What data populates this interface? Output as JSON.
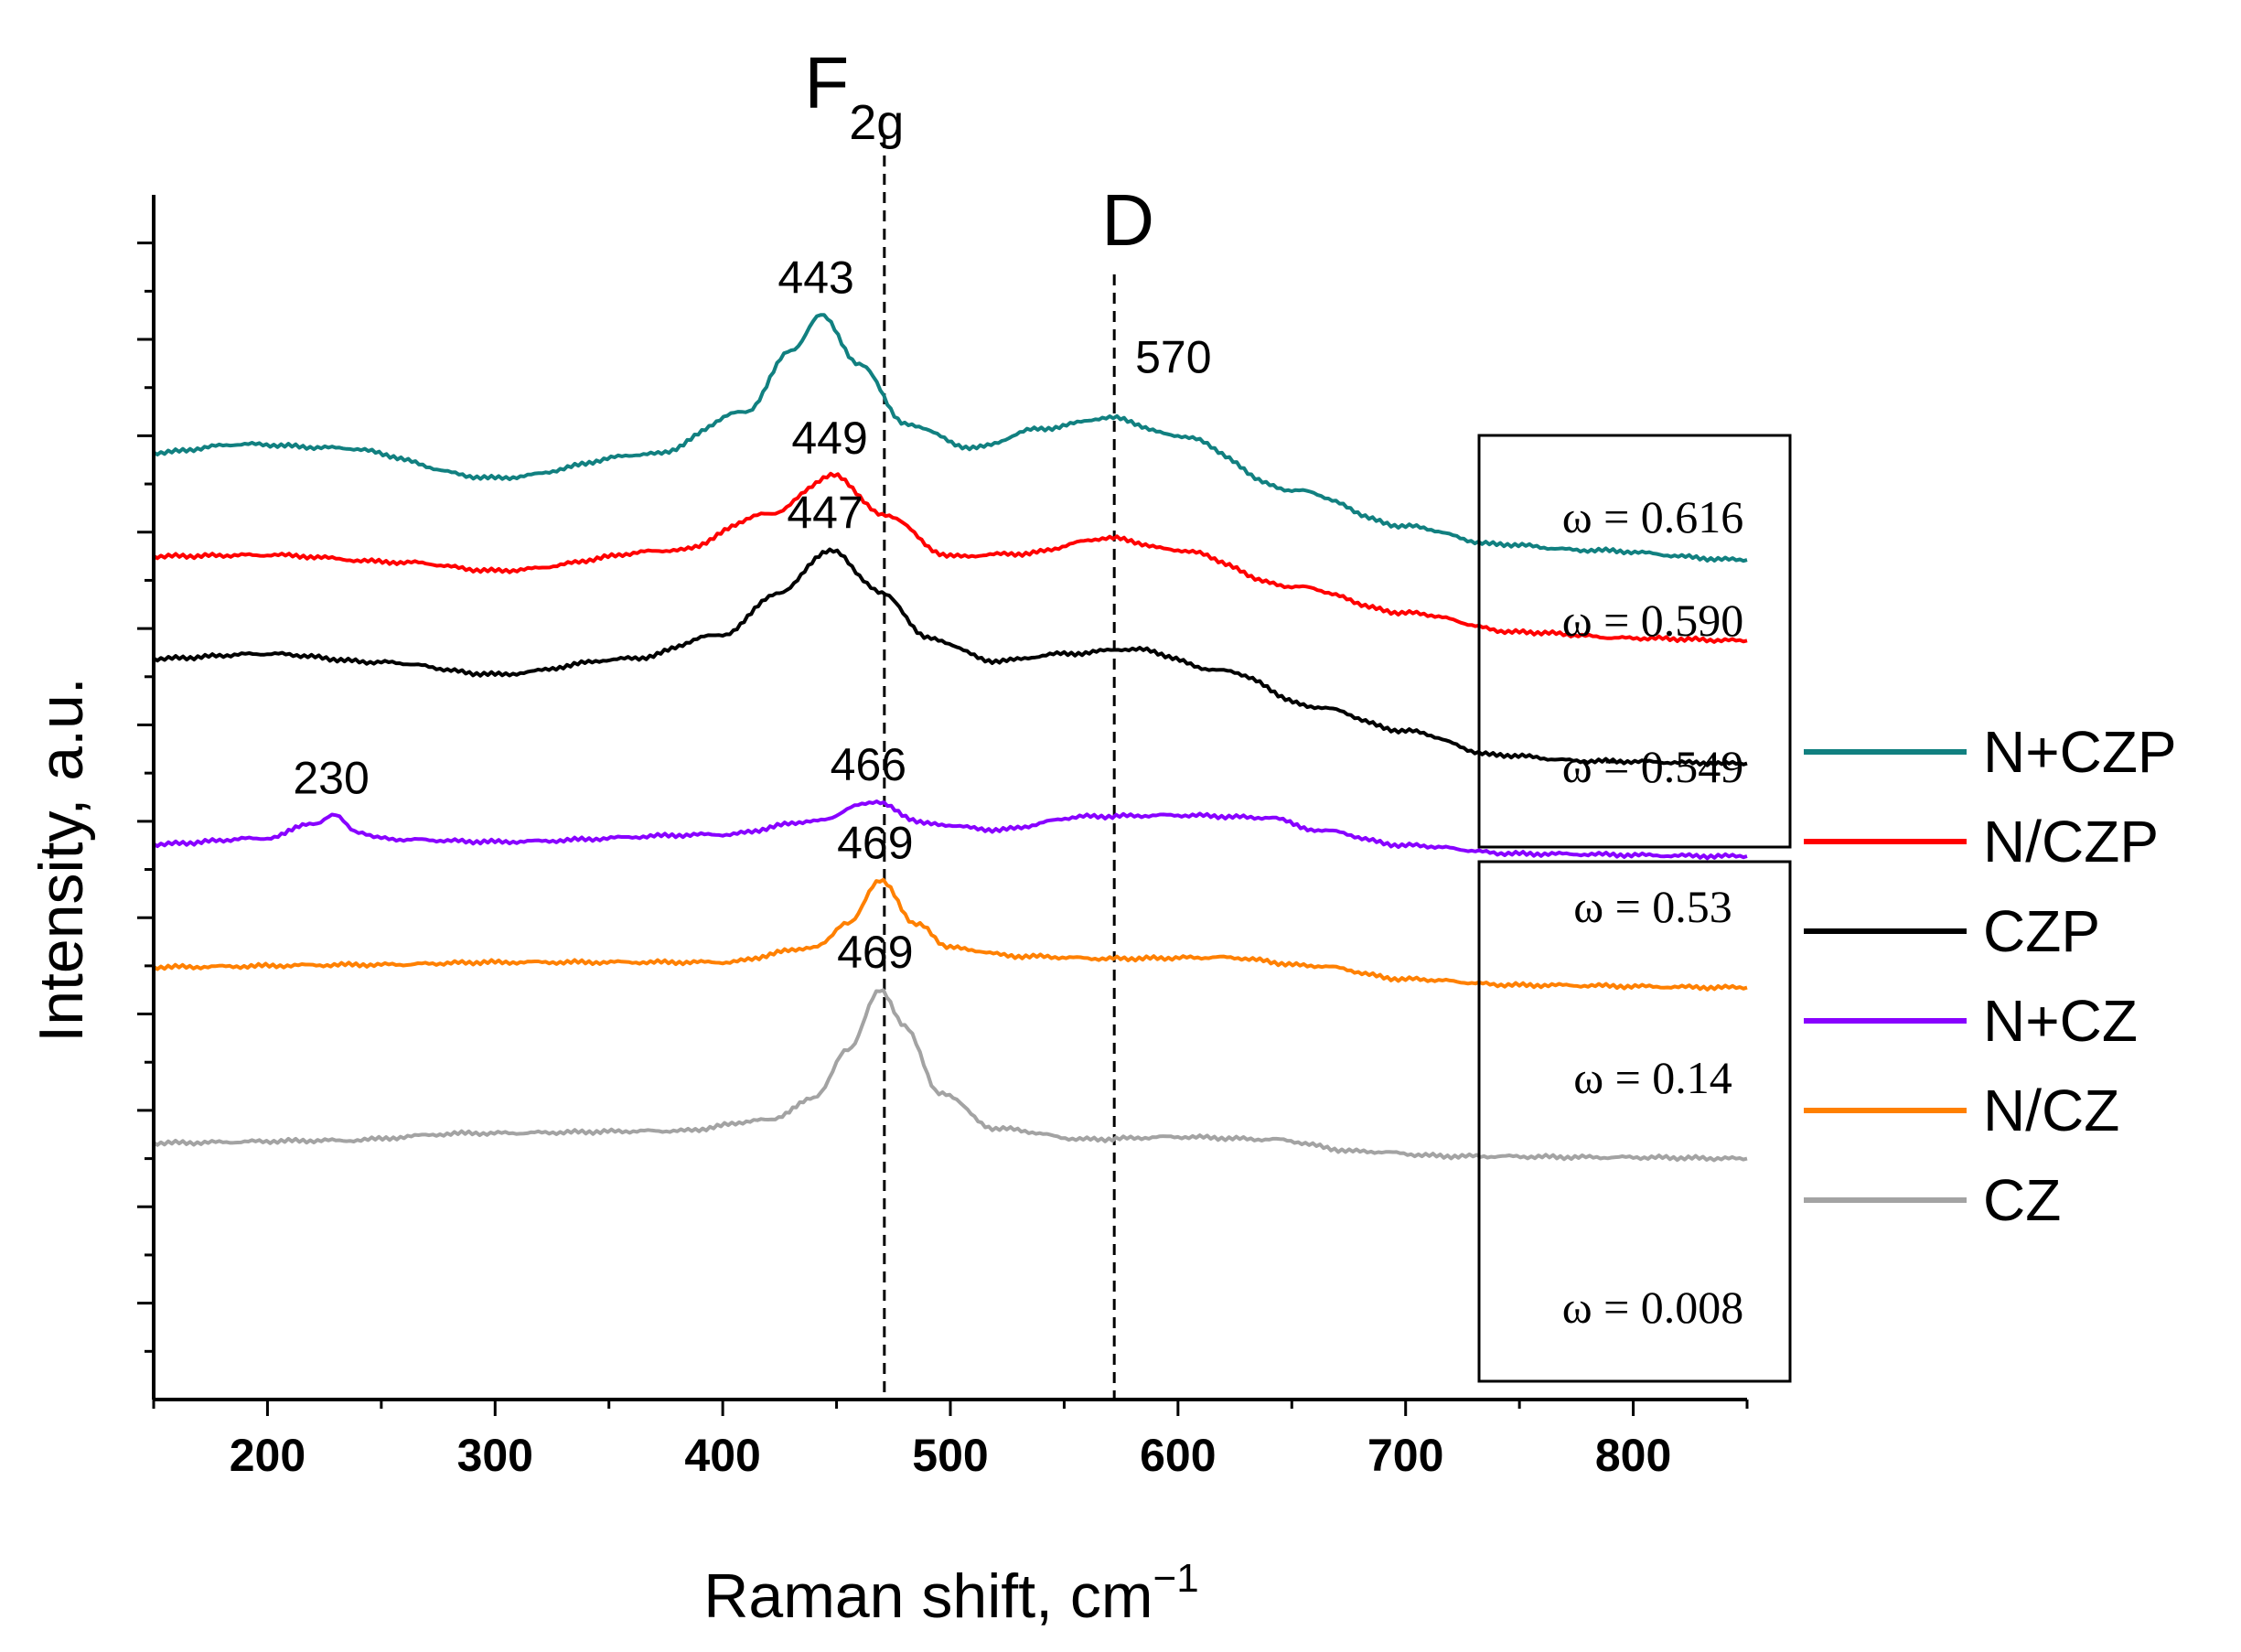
{
  "chart_data": {
    "type": "line",
    "title": "",
    "xlabel": "Raman shift, cm",
    "xlabel_sup": "−1",
    "ylabel": "Intensity, a.u.",
    "xlim": [
      150,
      850
    ],
    "xticks": [
      200,
      300,
      400,
      500,
      600,
      700,
      800
    ],
    "xtick_labels": [
      "200",
      "300",
      "400",
      "500",
      "600",
      "700",
      "800"
    ],
    "ylim": [
      0,
      100
    ],
    "y_ticklabels_shown": false,
    "legend_position": "right",
    "series": [
      {
        "name": "N+CZP",
        "color": "#118080",
        "points": [
          [
            150,
            78.6
          ],
          [
            190,
            79.3
          ],
          [
            230,
            79
          ],
          [
            300,
            76.5
          ],
          [
            370,
            78.5
          ],
          [
            410,
            82
          ],
          [
            430,
            87
          ],
          [
            443,
            90
          ],
          [
            460,
            86
          ],
          [
            480,
            81
          ],
          [
            510,
            79
          ],
          [
            540,
            80.6
          ],
          [
            570,
            81.5
          ],
          [
            600,
            80
          ],
          [
            650,
            75.5
          ],
          [
            700,
            72.5
          ],
          [
            740,
            71
          ],
          [
            780,
            70.5
          ],
          [
            850,
            69.7
          ]
        ]
      },
      {
        "name": "N/CZP",
        "color": "#ff0000",
        "points": [
          [
            150,
            70
          ],
          [
            200,
            70.1
          ],
          [
            260,
            69.5
          ],
          [
            300,
            68.8
          ],
          [
            380,
            70.5
          ],
          [
            420,
            73.5
          ],
          [
            449,
            76.7
          ],
          [
            470,
            73.5
          ],
          [
            500,
            70
          ],
          [
            530,
            70.2
          ],
          [
            570,
            71.5
          ],
          [
            600,
            70.5
          ],
          [
            650,
            67.5
          ],
          [
            700,
            65.3
          ],
          [
            750,
            63.7
          ],
          [
            800,
            63.2
          ],
          [
            850,
            63
          ]
        ]
      },
      {
        "name": "CZP",
        "color": "#000000",
        "points": [
          [
            150,
            61.5
          ],
          [
            200,
            61.9
          ],
          [
            250,
            61.2
          ],
          [
            300,
            60.2
          ],
          [
            360,
            61.5
          ],
          [
            400,
            63.5
          ],
          [
            425,
            67
          ],
          [
            447,
            70.5
          ],
          [
            470,
            67
          ],
          [
            490,
            63.2
          ],
          [
            520,
            61.3
          ],
          [
            550,
            61.9
          ],
          [
            580,
            62.3
          ],
          [
            620,
            60.5
          ],
          [
            660,
            57.5
          ],
          [
            700,
            55.5
          ],
          [
            740,
            53.5
          ],
          [
            780,
            53
          ],
          [
            850,
            52.8
          ]
        ]
      },
      {
        "name": "N+CZ",
        "color": "#8800ff",
        "points": [
          [
            150,
            46.1
          ],
          [
            200,
            46.6
          ],
          [
            220,
            47.8
          ],
          [
            230,
            48.5
          ],
          [
            240,
            47
          ],
          [
            255,
            46.5
          ],
          [
            300,
            46.3
          ],
          [
            400,
            46.9
          ],
          [
            440,
            48
          ],
          [
            466,
            49.6
          ],
          [
            490,
            47.8
          ],
          [
            520,
            47.3
          ],
          [
            560,
            48.4
          ],
          [
            600,
            48.5
          ],
          [
            640,
            48.3
          ],
          [
            660,
            47.3
          ],
          [
            700,
            46
          ],
          [
            750,
            45.3
          ],
          [
            850,
            45.1
          ]
        ]
      },
      {
        "name": "N/CZ",
        "color": "#ff8000",
        "points": [
          [
            150,
            35.9
          ],
          [
            250,
            36.1
          ],
          [
            300,
            36.3
          ],
          [
            400,
            36.3
          ],
          [
            440,
            37.5
          ],
          [
            455,
            39.5
          ],
          [
            469,
            43.1
          ],
          [
            485,
            39.5
          ],
          [
            500,
            37.5
          ],
          [
            530,
            36.8
          ],
          [
            570,
            36.6
          ],
          [
            620,
            36.7
          ],
          [
            660,
            36
          ],
          [
            700,
            34.9
          ],
          [
            750,
            34.4
          ],
          [
            850,
            34.2
          ]
        ]
      },
      {
        "name": "CZ",
        "color": "#a3a3a3",
        "points": [
          [
            150,
            21.3
          ],
          [
            230,
            21.5
          ],
          [
            290,
            22.1
          ],
          [
            380,
            22.3
          ],
          [
            420,
            23.2
          ],
          [
            440,
            25
          ],
          [
            455,
            29
          ],
          [
            469,
            34
          ],
          [
            480,
            31
          ],
          [
            495,
            25.5
          ],
          [
            520,
            22.5
          ],
          [
            560,
            21.6
          ],
          [
            600,
            21.8
          ],
          [
            640,
            21.6
          ],
          [
            680,
            20.6
          ],
          [
            720,
            20.2
          ],
          [
            800,
            20.1
          ],
          [
            850,
            20
          ]
        ]
      }
    ],
    "peak_labels": [
      {
        "text": "443",
        "x": 443,
        "y": 90
      },
      {
        "text": "449",
        "x": 449,
        "y": 76.7
      },
      {
        "text": "447",
        "x": 447,
        "y": 70.5
      },
      {
        "text": "466",
        "x": 466,
        "y": 49.6
      },
      {
        "text": "469",
        "x": 469,
        "y": 43.1
      },
      {
        "text": "469",
        "x": 469,
        "y": 34
      },
      {
        "text": "230",
        "x": 230,
        "y": 48.5
      },
      {
        "text": "570",
        "x": 600,
        "y": 83.4
      }
    ],
    "reference_lines": [
      {
        "label": "F",
        "subscript": "2g",
        "x": 471
      },
      {
        "label": "D",
        "x": 572
      }
    ],
    "omega_groups": [
      {
        "group": "CZP",
        "values": [
          "ω = 0.616",
          "ω = 0.590",
          "ω = 0.549"
        ]
      },
      {
        "group": "CZ",
        "values": [
          "ω = 0.53",
          "ω = 0.14",
          "ω = 0.008"
        ]
      }
    ]
  }
}
